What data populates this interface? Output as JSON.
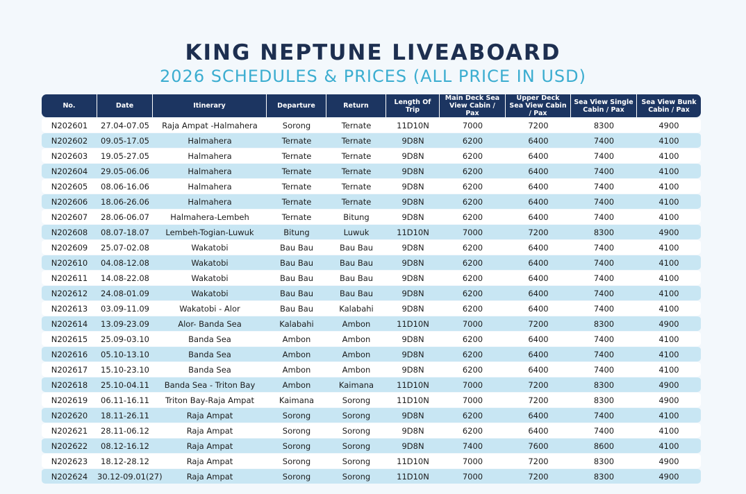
{
  "header": {
    "title": "KING NEPTUNE LIVEABOARD",
    "subtitle": "2026 SCHEDULES & PRICES (ALL PRICE IN USD)"
  },
  "table": {
    "headers": [
      "No.",
      "Date",
      "Itinerary",
      "Departure",
      "Return",
      "Length Of Trip",
      "Main Deck Sea View Cabin / Pax",
      "Upper Deck Sea View Cabin / Pax",
      "Sea View Single Cabin / Pax",
      "Sea View  Bunk Cabin / Pax"
    ],
    "rows": [
      [
        "N202601",
        "27.04-07.05",
        "Raja Ampat -Halmahera",
        "Sorong",
        "Ternate",
        "11D10N",
        "7000",
        "7200",
        "8300",
        "4900"
      ],
      [
        "N202602",
        "09.05-17.05",
        "Halmahera",
        "Ternate",
        "Ternate",
        "9D8N",
        "6200",
        "6400",
        "7400",
        "4100"
      ],
      [
        "N202603",
        "19.05-27.05",
        "Halmahera",
        "Ternate",
        "Ternate",
        "9D8N",
        "6200",
        "6400",
        "7400",
        "4100"
      ],
      [
        "N202604",
        "29.05-06.06",
        "Halmahera",
        "Ternate",
        "Ternate",
        "9D8N",
        "6200",
        "6400",
        "7400",
        "4100"
      ],
      [
        "N202605",
        "08.06-16.06",
        "Halmahera",
        "Ternate",
        "Ternate",
        "9D8N",
        "6200",
        "6400",
        "7400",
        "4100"
      ],
      [
        "N202606",
        "18.06-26.06",
        "Halmahera",
        "Ternate",
        "Ternate",
        "9D8N",
        "6200",
        "6400",
        "7400",
        "4100"
      ],
      [
        "N202607",
        "28.06-06.07",
        "Halmahera-Lembeh",
        "Ternate",
        "Bitung",
        "9D8N",
        "6200",
        "6400",
        "7400",
        "4100"
      ],
      [
        "N202608",
        "08.07-18.07",
        "Lembeh-Togian-Luwuk",
        "Bitung",
        "Luwuk",
        "11D10N",
        "7000",
        "7200",
        "8300",
        "4900"
      ],
      [
        "N202609",
        "25.07-02.08",
        "Wakatobi",
        "Bau Bau",
        "Bau Bau",
        "9D8N",
        "6200",
        "6400",
        "7400",
        "4100"
      ],
      [
        "N202610",
        "04.08-12.08",
        "Wakatobi",
        "Bau Bau",
        "Bau Bau",
        "9D8N",
        "6200",
        "6400",
        "7400",
        "4100"
      ],
      [
        "N202611",
        "14.08-22.08",
        "Wakatobi",
        "Bau Bau",
        "Bau Bau",
        "9D8N",
        "6200",
        "6400",
        "7400",
        "4100"
      ],
      [
        "N202612",
        "24.08-01.09",
        "Wakatobi",
        "Bau Bau",
        "Bau Bau",
        "9D8N",
        "6200",
        "6400",
        "7400",
        "4100"
      ],
      [
        "N202613",
        "03.09-11.09",
        "Wakatobi - Alor",
        "Bau Bau",
        "Kalabahi",
        "9D8N",
        "6200",
        "6400",
        "7400",
        "4100"
      ],
      [
        "N202614",
        "13.09-23.09",
        "Alor- Banda Sea",
        "Kalabahi",
        "Ambon",
        "11D10N",
        "7000",
        "7200",
        "8300",
        "4900"
      ],
      [
        "N202615",
        "25.09-03.10",
        "Banda Sea",
        "Ambon",
        "Ambon",
        "9D8N",
        "6200",
        "6400",
        "7400",
        "4100"
      ],
      [
        "N202616",
        "05.10-13.10",
        "Banda Sea",
        "Ambon",
        "Ambon",
        "9D8N",
        "6200",
        "6400",
        "7400",
        "4100"
      ],
      [
        "N202617",
        "15.10-23.10",
        "Banda Sea",
        "Ambon",
        "Ambon",
        "9D8N",
        "6200",
        "6400",
        "7400",
        "4100"
      ],
      [
        "N202618",
        "25.10-04.11",
        "Banda Sea - Triton Bay",
        "Ambon",
        "Kaimana",
        "11D10N",
        "7000",
        "7200",
        "8300",
        "4900"
      ],
      [
        "N202619",
        "06.11-16.11",
        "Triton Bay-Raja Ampat",
        "Kaimana",
        "Sorong",
        "11D10N",
        "7000",
        "7200",
        "8300",
        "4900"
      ],
      [
        "N202620",
        "18.11-26.11",
        "Raja Ampat",
        "Sorong",
        "Sorong",
        "9D8N",
        "6200",
        "6400",
        "7400",
        "4100"
      ],
      [
        "N202621",
        "28.11-06.12",
        "Raja Ampat",
        "Sorong",
        "Sorong",
        "9D8N",
        "6200",
        "6400",
        "7400",
        "4100"
      ],
      [
        "N202622",
        "08.12-16.12",
        "Raja Ampat",
        "Sorong",
        "Sorong",
        "9D8N",
        "7400",
        "7600",
        "8600",
        "4100"
      ],
      [
        "N202623",
        "18.12-28.12",
        "Raja Ampat",
        "Sorong",
        "Sorong",
        "11D10N",
        "7000",
        "7200",
        "8300",
        "4900"
      ],
      [
        "N202624",
        "30.12-09.01(27)",
        "Raja Ampat",
        "Sorong",
        "Sorong",
        "11D10N",
        "7000",
        "7200",
        "8300",
        "4900"
      ]
    ]
  }
}
